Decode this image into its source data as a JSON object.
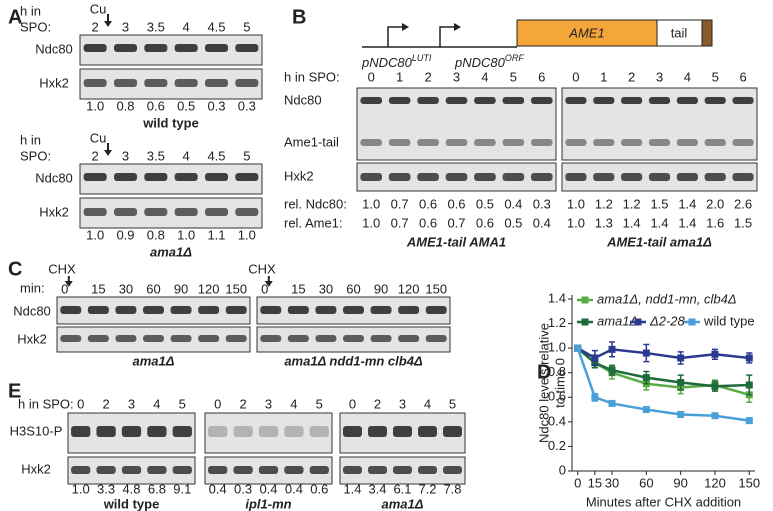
{
  "panels": {
    "A": {
      "label": "A",
      "blocks": [
        {
          "h_in": "h in",
          "spo": "SPO:",
          "marker": "Cu",
          "timepoints": [
            "2",
            "3",
            "3.5",
            "4",
            "4.5",
            "5"
          ],
          "rows": [
            "Ndc80",
            "Hxk2"
          ],
          "quant": [
            "1.0",
            "0.8",
            "0.6",
            "0.5",
            "0.3",
            "0.3"
          ],
          "caption": "wild type"
        },
        {
          "h_in": "h in",
          "spo": "SPO:",
          "marker": "Cu",
          "timepoints": [
            "2",
            "3",
            "3.5",
            "4",
            "4.5",
            "5"
          ],
          "rows": [
            "Ndc80",
            "Hxk2"
          ],
          "quant": [
            "1.0",
            "0.9",
            "0.8",
            "1.0",
            "1.1",
            "1.0"
          ],
          "caption": "ama1Δ"
        }
      ]
    },
    "B": {
      "label": "B",
      "construct": {
        "promoter_luti": {
          "text": "pNDC80",
          "superscript": "LUTI"
        },
        "promoter_orf": {
          "text": "pNDC80",
          "superscript": "ORF"
        },
        "gene": "AME1",
        "tag": "tail"
      },
      "h_in_spo": "h in SPO:",
      "rows": [
        "Ndc80",
        "Ame1-tail",
        "Hxk2"
      ],
      "rel_ndc80_label": "rel. Ndc80:",
      "rel_ame1_label": "rel. Ame1:",
      "blots": [
        {
          "timepoints": [
            "0",
            "1",
            "2",
            "3",
            "4",
            "5",
            "6"
          ],
          "rel_ndc80": [
            "1.0",
            "0.7",
            "0.6",
            "0.6",
            "0.5",
            "0.4",
            "0.3"
          ],
          "rel_ame1": [
            "1.0",
            "0.7",
            "0.6",
            "0.7",
            "0.6",
            "0.5",
            "0.4"
          ],
          "caption": "AME1-tail AMA1"
        },
        {
          "timepoints": [
            "0",
            "1",
            "2",
            "3",
            "4",
            "5",
            "6"
          ],
          "rel_ndc80": [
            "1.0",
            "1.2",
            "1.2",
            "1.5",
            "1.4",
            "2.0",
            "2.6"
          ],
          "rel_ame1": [
            "1.0",
            "1.3",
            "1.4",
            "1.4",
            "1.4",
            "1.6",
            "1.5"
          ],
          "caption": "AME1-tail ama1Δ"
        }
      ]
    },
    "C": {
      "label": "C",
      "marker": "CHX",
      "min_label": "min:",
      "rows": [
        "Ndc80",
        "Hxk2"
      ],
      "blots": [
        {
          "timepoints": [
            "0",
            "15",
            "30",
            "60",
            "90",
            "120",
            "150"
          ],
          "caption": "ama1Δ"
        },
        {
          "timepoints": [
            "0",
            "15",
            "30",
            "60",
            "90",
            "120",
            "150"
          ],
          "caption": "ama1Δ ndd1-mn clb4Δ"
        }
      ]
    },
    "D": {
      "label": "D"
    },
    "E": {
      "label": "E",
      "h_in_spo": "h in SPO:",
      "rows": [
        "H3S10-P",
        "Hxk2"
      ],
      "blots": [
        {
          "timepoints": [
            "0",
            "2",
            "3",
            "4",
            "5"
          ],
          "quant": [
            "1.0",
            "3.3",
            "4.8",
            "6.8",
            "9.1"
          ],
          "caption": "wild type"
        },
        {
          "timepoints": [
            "0",
            "2",
            "3",
            "4",
            "5"
          ],
          "quant": [
            "0.4",
            "0.3",
            "0.4",
            "0.4",
            "0.6"
          ],
          "caption": "ipl1-mn"
        },
        {
          "timepoints": [
            "0",
            "2",
            "3",
            "4",
            "5"
          ],
          "quant": [
            "1.4",
            "3.4",
            "6.1",
            "7.2",
            "7.8"
          ],
          "caption": "ama1Δ"
        }
      ]
    }
  },
  "chart_data": {
    "type": "line",
    "y_label": [
      "Ndc80 levels relative",
      "to time 0"
    ],
    "x_label": "Minutes after CHX addition",
    "x": [
      0,
      15,
      30,
      60,
      90,
      120,
      150
    ],
    "xlim": [
      -5,
      155
    ],
    "xticks": [
      0,
      15,
      30,
      60,
      90,
      120,
      150
    ],
    "ylim": [
      0,
      1.4
    ],
    "yticks": [
      0,
      0.2,
      0.4,
      0.6,
      0.8,
      {
        "value": 1,
        "label": "1.0"
      },
      1.2,
      1.4
    ],
    "series": [
      {
        "name": "ama1Δ, ndd1-mn, clb4Δ",
        "color": "#5aab46",
        "values": [
          1.0,
          0.88,
          0.8,
          0.71,
          0.68,
          0.7,
          0.62
        ],
        "errors": [
          0,
          0.04,
          0.05,
          0.05,
          0.05,
          0.04,
          0.06
        ]
      },
      {
        "name": "ama1Δ",
        "color": "#1e6b3a",
        "values": [
          1.0,
          0.88,
          0.82,
          0.76,
          0.72,
          0.69,
          0.7
        ],
        "errors": [
          0,
          0.04,
          0.04,
          0.05,
          0.06,
          0.04,
          0.08
        ]
      },
      {
        "name": "Δ2-28",
        "color": "#2b3990",
        "values": [
          1.0,
          0.92,
          0.99,
          0.96,
          0.92,
          0.95,
          0.92
        ],
        "errors": [
          0,
          0.06,
          0.06,
          0.07,
          0.05,
          0.04,
          0.04
        ]
      },
      {
        "name": "wild type",
        "color": "#4a9fd8",
        "values": [
          1.0,
          0.6,
          0.55,
          0.5,
          0.46,
          0.45,
          0.41
        ],
        "errors": [
          0,
          0.03,
          0.02,
          0.01,
          0.01,
          0.01,
          0.02
        ]
      }
    ]
  }
}
